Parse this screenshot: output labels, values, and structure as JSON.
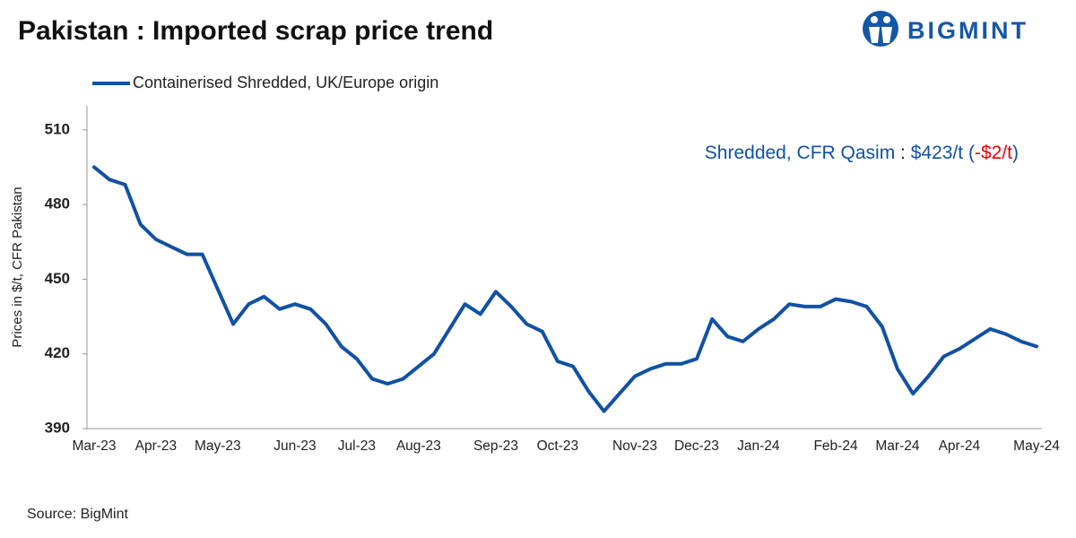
{
  "chart_data": {
    "type": "line",
    "title": "Pakistan : Imported scrap price trend",
    "logo": "BIGMINT",
    "y_label": "Prices in $/t, CFR Pakistan",
    "source": "Source: BigMint",
    "annotation": {
      "label": "Shredded, CFR Qasim",
      "separator": ":",
      "price": "$423/t",
      "open": "(",
      "change": "-$2/t",
      "close": ")"
    },
    "categories": [
      "Mar-23",
      null,
      null,
      null,
      "Apr-23",
      null,
      null,
      null,
      "May-23",
      null,
      null,
      null,
      null,
      "Jun-23",
      null,
      null,
      null,
      "Jul-23",
      null,
      null,
      null,
      "Aug-23",
      null,
      null,
      null,
      null,
      "Sep-23",
      null,
      null,
      null,
      "Oct-23",
      null,
      null,
      null,
      null,
      "Nov-23",
      null,
      null,
      null,
      "Dec-23",
      null,
      null,
      null,
      "Jan-24",
      null,
      null,
      null,
      null,
      "Feb-24",
      null,
      null,
      null,
      "Mar-24",
      null,
      null,
      null,
      "Apr-24",
      null,
      null,
      null,
      null,
      "May-24"
    ],
    "series": [
      {
        "name": "Containerised Shredded, UK/Europe origin",
        "color": "#1151a3",
        "values": [
          495,
          490,
          488,
          472,
          466,
          463,
          460,
          460,
          446,
          432,
          440,
          443,
          438,
          440,
          438,
          432,
          423,
          418,
          410,
          408,
          410,
          415,
          420,
          430,
          440,
          436,
          445,
          439,
          432,
          429,
          417,
          415,
          405,
          397,
          404,
          411,
          414,
          416,
          416,
          418,
          434,
          427,
          425,
          430,
          434,
          440,
          439,
          439,
          442,
          441,
          439,
          431,
          414,
          404,
          411,
          419,
          422,
          426,
          430,
          428,
          425,
          423
        ]
      }
    ],
    "ylim": [
      390,
      520
    ],
    "yticks": [
      390,
      420,
      450,
      480,
      510
    ],
    "grid": false,
    "annotation_colors": {
      "label": "#1151a3",
      "separator": "#222222",
      "price": "#1151a3",
      "open": "#1151a3",
      "change": "#e8000b",
      "close": "#1151a3"
    }
  }
}
